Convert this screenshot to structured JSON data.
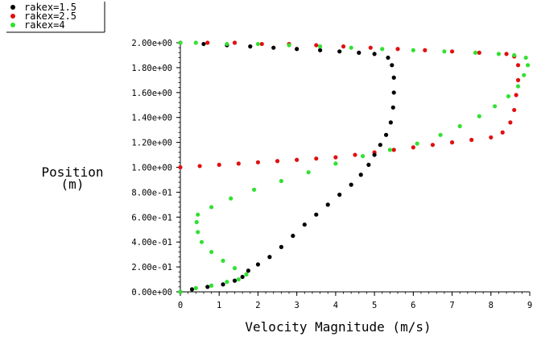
{
  "chart_data": {
    "type": "scatter",
    "xlabel": "Velocity Magnitude (m/s)",
    "ylabel_line1": "Position",
    "ylabel_line2": "(m)",
    "xlim": [
      0,
      9
    ],
    "ylim": [
      0,
      2
    ],
    "x_ticks": [
      0,
      1,
      2,
      3,
      4,
      5,
      6,
      7,
      8,
      9
    ],
    "x_tick_labels": [
      "0",
      "1",
      "2",
      "3",
      "4",
      "5",
      "6",
      "7",
      "8",
      "9"
    ],
    "y_ticks": [
      0,
      0.2,
      0.4,
      0.6,
      0.8,
      1.0,
      1.2,
      1.4,
      1.6,
      1.8,
      2.0
    ],
    "y_tick_labels": [
      "0.00e+00",
      "2.00e-01",
      "4.00e-01",
      "6.00e-01",
      "8.00e-01",
      "1.00e+00",
      "1.20e+00",
      "1.40e+00",
      "1.60e+00",
      "1.80e+00",
      "2.00e+00"
    ],
    "legend_placement": "top-left",
    "series": [
      {
        "name": "rakex=1.5",
        "color": "#000000",
        "points": [
          [
            0,
            0
          ],
          [
            0.3,
            0.02
          ],
          [
            0.7,
            0.04
          ],
          [
            1.1,
            0.06
          ],
          [
            1.4,
            0.09
          ],
          [
            1.6,
            0.12
          ],
          [
            1.75,
            0.17
          ],
          [
            2.0,
            0.22
          ],
          [
            2.3,
            0.28
          ],
          [
            2.6,
            0.36
          ],
          [
            2.9,
            0.45
          ],
          [
            3.2,
            0.54
          ],
          [
            3.5,
            0.62
          ],
          [
            3.8,
            0.7
          ],
          [
            4.1,
            0.78
          ],
          [
            4.4,
            0.86
          ],
          [
            4.65,
            0.94
          ],
          [
            4.85,
            1.02
          ],
          [
            5.0,
            1.1
          ],
          [
            5.15,
            1.18
          ],
          [
            5.3,
            1.26
          ],
          [
            5.42,
            1.36
          ],
          [
            5.48,
            1.48
          ],
          [
            5.5,
            1.6
          ],
          [
            5.5,
            1.72
          ],
          [
            5.45,
            1.82
          ],
          [
            5.35,
            1.88
          ],
          [
            5.0,
            1.91
          ],
          [
            4.6,
            1.92
          ],
          [
            4.1,
            1.93
          ],
          [
            3.6,
            1.94
          ],
          [
            3.0,
            1.95
          ],
          [
            2.4,
            1.96
          ],
          [
            1.8,
            1.97
          ],
          [
            1.2,
            1.98
          ],
          [
            0.6,
            1.99
          ]
        ]
      },
      {
        "name": "rakex=2.5",
        "color": "#e01010",
        "points": [
          [
            0,
            1.0
          ],
          [
            0.5,
            1.01
          ],
          [
            1.0,
            1.02
          ],
          [
            1.5,
            1.03
          ],
          [
            2.0,
            1.04
          ],
          [
            2.5,
            1.05
          ],
          [
            3.0,
            1.06
          ],
          [
            3.5,
            1.07
          ],
          [
            4.0,
            1.08
          ],
          [
            4.5,
            1.1
          ],
          [
            5.0,
            1.12
          ],
          [
            5.5,
            1.14
          ],
          [
            6.0,
            1.16
          ],
          [
            6.5,
            1.18
          ],
          [
            7.0,
            1.2
          ],
          [
            7.5,
            1.22
          ],
          [
            8.0,
            1.24
          ],
          [
            8.3,
            1.28
          ],
          [
            8.5,
            1.36
          ],
          [
            8.6,
            1.46
          ],
          [
            8.65,
            1.58
          ],
          [
            8.7,
            1.7
          ],
          [
            8.7,
            1.82
          ],
          [
            8.6,
            1.89
          ],
          [
            8.4,
            1.91
          ],
          [
            7.7,
            1.92
          ],
          [
            7.0,
            1.93
          ],
          [
            6.3,
            1.94
          ],
          [
            5.6,
            1.95
          ],
          [
            4.9,
            1.96
          ],
          [
            4.2,
            1.97
          ],
          [
            3.5,
            1.98
          ],
          [
            2.8,
            1.99
          ],
          [
            2.1,
            1.99
          ],
          [
            1.4,
            2.0
          ],
          [
            0.7,
            2.0
          ],
          [
            0,
            2.0
          ]
        ]
      },
      {
        "name": "rakex=4",
        "color": "#33e033",
        "points": [
          [
            0,
            0
          ],
          [
            0.4,
            0.03
          ],
          [
            0.8,
            0.05
          ],
          [
            1.2,
            0.08
          ],
          [
            1.5,
            0.1
          ],
          [
            1.7,
            0.14
          ],
          [
            1.4,
            0.19
          ],
          [
            1.1,
            0.25
          ],
          [
            0.8,
            0.32
          ],
          [
            0.55,
            0.4
          ],
          [
            0.45,
            0.48
          ],
          [
            0.42,
            0.56
          ],
          [
            0.45,
            0.62
          ],
          [
            0.8,
            0.68
          ],
          [
            1.3,
            0.75
          ],
          [
            1.9,
            0.82
          ],
          [
            2.6,
            0.89
          ],
          [
            3.3,
            0.96
          ],
          [
            4.0,
            1.03
          ],
          [
            4.7,
            1.09
          ],
          [
            5.4,
            1.14
          ],
          [
            6.1,
            1.19
          ],
          [
            6.7,
            1.26
          ],
          [
            7.2,
            1.33
          ],
          [
            7.7,
            1.41
          ],
          [
            8.1,
            1.49
          ],
          [
            8.45,
            1.57
          ],
          [
            8.7,
            1.65
          ],
          [
            8.85,
            1.74
          ],
          [
            8.95,
            1.82
          ],
          [
            8.9,
            1.88
          ],
          [
            8.6,
            1.9
          ],
          [
            8.2,
            1.91
          ],
          [
            7.6,
            1.92
          ],
          [
            6.8,
            1.93
          ],
          [
            6.0,
            1.94
          ],
          [
            5.2,
            1.95
          ],
          [
            4.4,
            1.96
          ],
          [
            3.6,
            1.97
          ],
          [
            2.8,
            1.98
          ],
          [
            2.0,
            1.99
          ],
          [
            1.2,
            1.99
          ],
          [
            0.4,
            2.0
          ],
          [
            0,
            2.0
          ]
        ]
      }
    ]
  }
}
